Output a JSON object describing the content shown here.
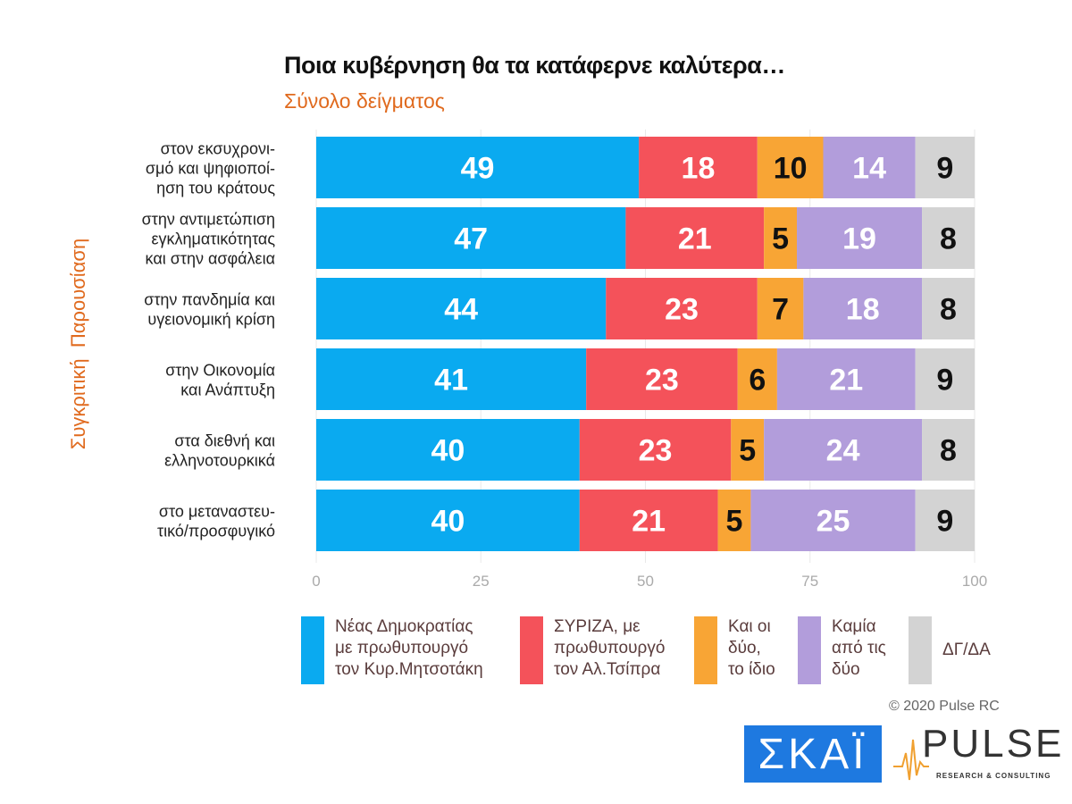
{
  "chart_data": {
    "type": "bar",
    "orientation": "horizontal-stacked",
    "title": "Ποια κυβέρνηση θα τα κατάφερνε καλύτερα…",
    "subtitle": "Σύνολο δείγματος",
    "ylabel": "Συγκριτική  Παρουσίαση",
    "xlim": [
      0,
      100
    ],
    "xticks": [
      "0",
      "25",
      "50",
      "75",
      "100"
    ],
    "categories": [
      [
        "στον εκσυχρονι-",
        "σμό και ψηφιοποί-",
        "ηση του κράτους"
      ],
      [
        "στην αντιμετώπιση",
        "εγκληματικότητας",
        "και στην ασφάλεια"
      ],
      [
        "στην πανδημία και",
        "υγειονομική κρίση"
      ],
      [
        "στην Οικονομία",
        "και Ανάπτυξη"
      ],
      [
        "στα διεθνή και",
        "ελληνοτουρκικά"
      ],
      [
        "στο μεταναστευ-",
        "τικό/προσφυγικό"
      ]
    ],
    "series": [
      {
        "name": "Νέας Δημοκρατίας\nμε πρωθυπουργό\nτον Κυρ.Μητσοτάκη",
        "color": "#0aaaf0",
        "label_color": "#ffffff",
        "values": [
          49,
          47,
          44,
          41,
          40,
          40
        ]
      },
      {
        "name": "ΣΥΡΙΖΑ, με\nπρωθυπουργό\nτον Αλ.Τσίπρα",
        "color": "#f4525a",
        "label_color": "#ffffff",
        "values": [
          18,
          21,
          23,
          23,
          23,
          21
        ]
      },
      {
        "name": "Και οι\nδύο,\nτο ίδιο",
        "color": "#f8a535",
        "label_color": "#111111",
        "values": [
          10,
          5,
          7,
          6,
          5,
          5
        ]
      },
      {
        "name": "Καμία\nαπό τις\nδύο",
        "color": "#b29ddb",
        "label_color": "#ffffff",
        "values": [
          14,
          19,
          18,
          21,
          24,
          25
        ]
      },
      {
        "name": "ΔΓ/ΔΑ",
        "color": "#d3d3d3",
        "label_color": "#111111",
        "values": [
          9,
          8,
          8,
          9,
          8,
          9
        ]
      }
    ],
    "legend": "bottom"
  },
  "footer": {
    "copyright": "© 2020 Pulse RC",
    "logo_skai": "ΣΚΑΪ",
    "logo_pulse": "PULSE",
    "logo_pulse_sub": "RESEARCH & CONSULTING"
  }
}
